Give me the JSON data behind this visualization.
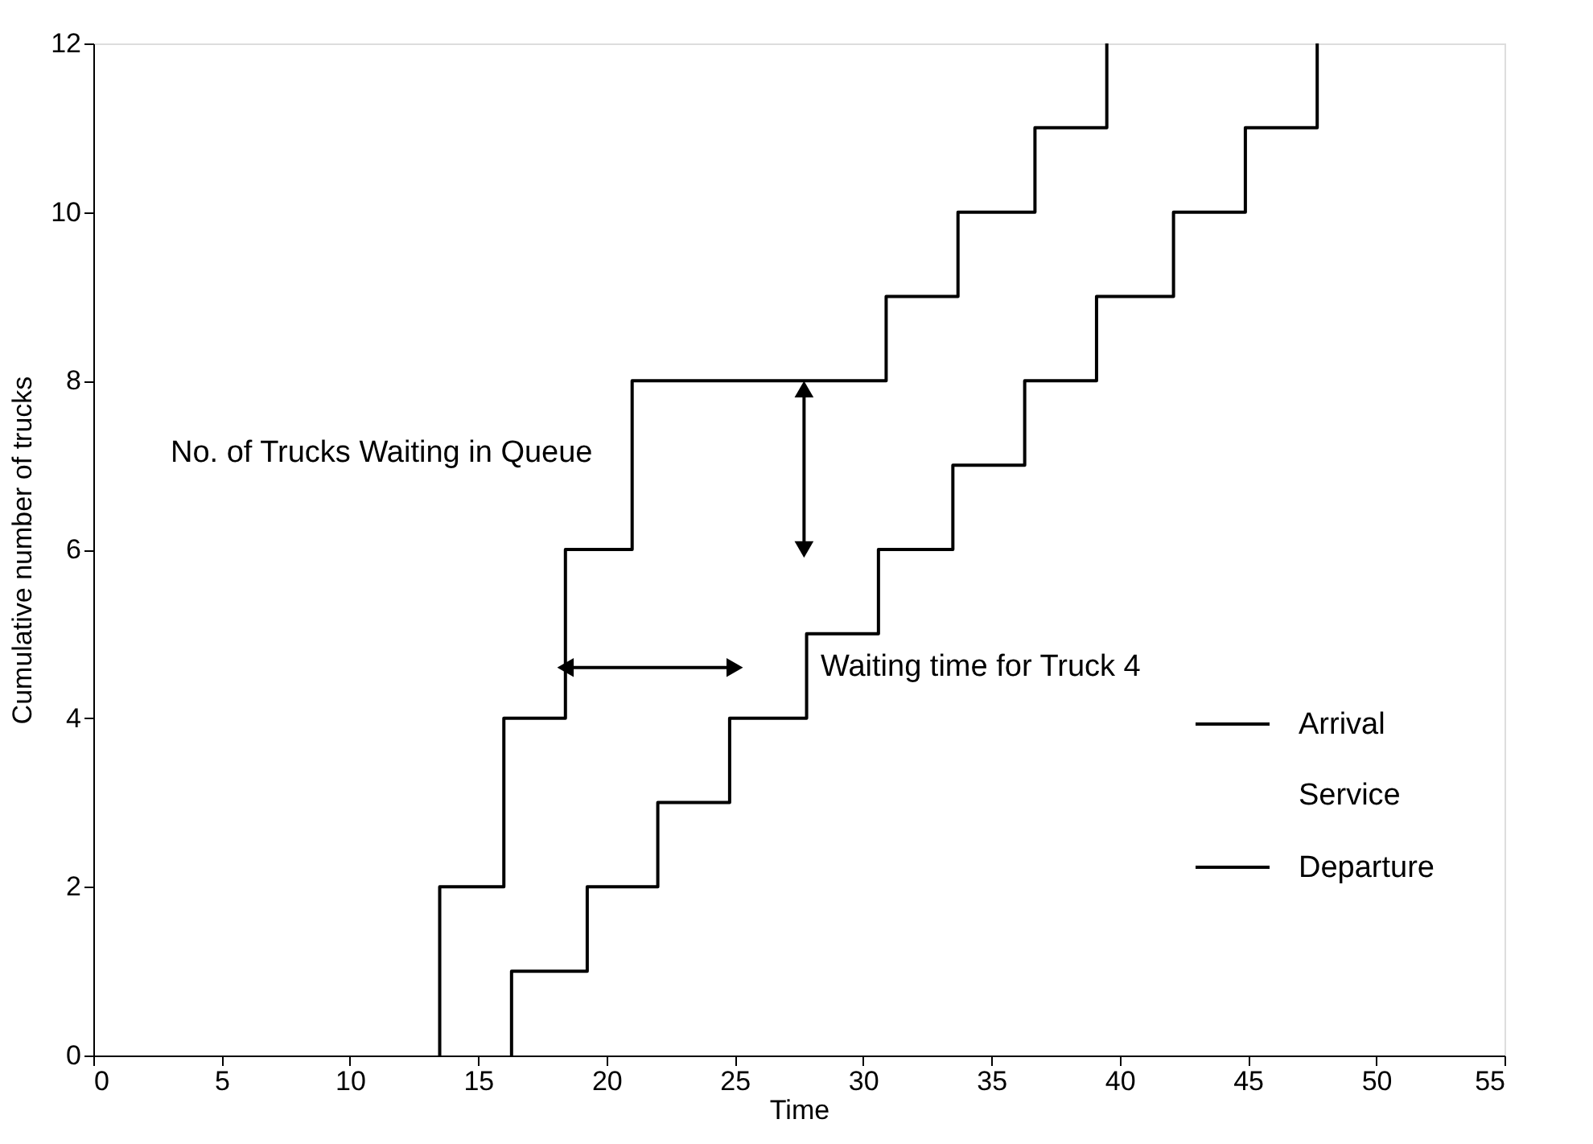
{
  "chart_data": {
    "type": "step",
    "xlabel": "Time",
    "ylabel": "Cumulative number of trucks",
    "xlim": [
      0,
      55
    ],
    "xticks": [
      0,
      5,
      10,
      15,
      20,
      25,
      30,
      35,
      40,
      45,
      50,
      55
    ],
    "ylim": [
      0,
      12
    ],
    "yticks": [
      0,
      2,
      4,
      6,
      8,
      10,
      12
    ],
    "grid": false,
    "legend": "bottom right",
    "series": [
      {
        "name": "Arrival",
        "color": "#000000",
        "x": [
          13.5,
          13.5,
          16.0,
          18.4,
          21.0,
          30.9,
          33.7,
          36.7,
          39.5
        ],
        "values": [
          0,
          2,
          4,
          6,
          8,
          9,
          10,
          11,
          12
        ]
      },
      {
        "name": "Departure",
        "color": "#000000",
        "x": [
          16.3,
          16.3,
          19.25,
          22.0,
          24.8,
          27.8,
          30.6,
          33.5,
          36.3,
          39.1,
          42.1,
          44.9,
          47.7
        ],
        "values": [
          0,
          1,
          2,
          3,
          4,
          5,
          6,
          7,
          8,
          9,
          10,
          11,
          12
        ]
      },
      {
        "type": "line",
        "color": "#000000",
        "marker": "triangle",
        "x": [
          27.7,
          27.7
        ],
        "values": [
          7.9,
          6.0
        ]
      },
      {
        "type": "line",
        "color": "#000000",
        "marker": "triangle",
        "x": [
          18.4,
          25.0
        ],
        "values": [
          4.6,
          4.6
        ]
      }
    ],
    "annotations": [
      "No. of Trucks Waiting in Queue",
      "Waiting time for Truck 4",
      "Service"
    ]
  }
}
